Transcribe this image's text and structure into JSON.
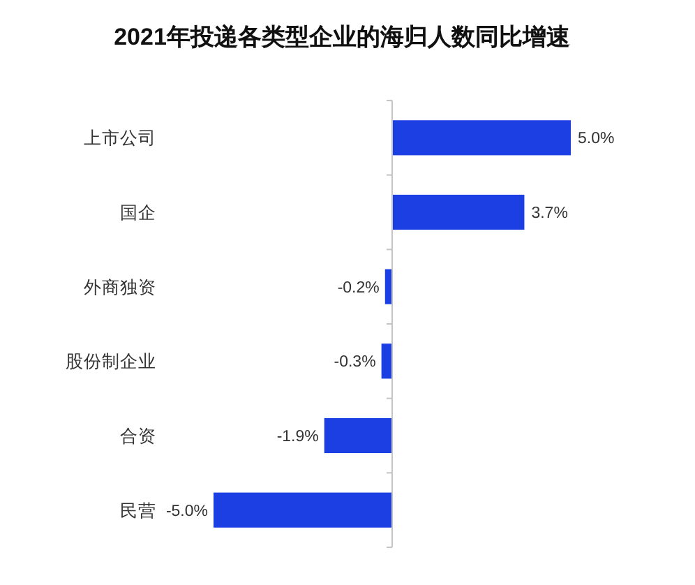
{
  "chart_data": {
    "type": "bar",
    "orientation": "horizontal",
    "title": "2021年投递各类型企业的海归人数同比增速",
    "categories": [
      "上市公司",
      "国企",
      "外商独资",
      "股份制企业",
      "合资",
      "民营"
    ],
    "values": [
      5.0,
      3.7,
      -0.2,
      -0.3,
      -1.9,
      -5.0
    ],
    "color": "#1c3fe4",
    "value_labels": [
      "5.0%",
      "3.7%",
      "-0.2%",
      "-0.3%",
      "-1.9%",
      "-5.0%"
    ]
  }
}
